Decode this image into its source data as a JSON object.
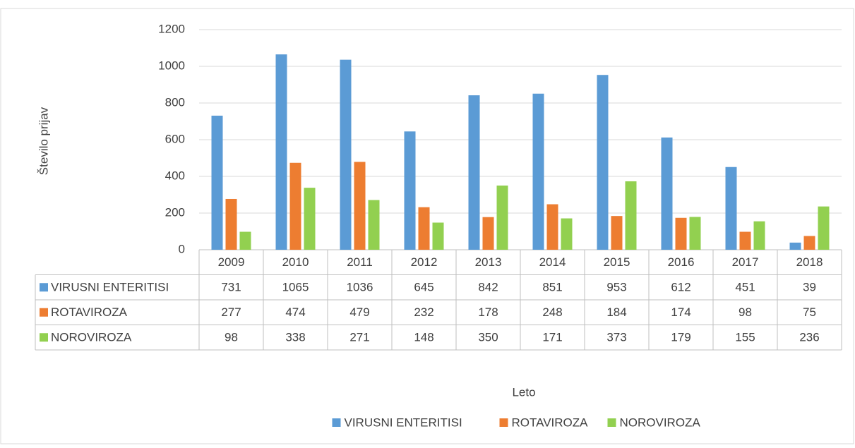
{
  "chart_data": {
    "type": "bar",
    "xlabel": "Leto",
    "ylabel": "Število prijav",
    "categories": [
      "2009",
      "2010",
      "2011",
      "2012",
      "2013",
      "2014",
      "2015",
      "2016",
      "2017",
      "2018"
    ],
    "series": [
      {
        "name": "VIRUSNI ENTERITISI",
        "color": "#5b9bd5",
        "values": [
          731,
          1065,
          1036,
          645,
          842,
          851,
          953,
          612,
          451,
          39
        ]
      },
      {
        "name": "ROTAVIROZA",
        "color": "#ed7d31",
        "values": [
          277,
          474,
          479,
          232,
          178,
          248,
          184,
          174,
          98,
          75
        ]
      },
      {
        "name": "NOROVIROZA",
        "color": "#92d050",
        "values": [
          98,
          338,
          271,
          148,
          350,
          171,
          373,
          179,
          155,
          236
        ]
      }
    ],
    "ylim": [
      0,
      1200
    ],
    "yticks": [
      0,
      200,
      400,
      600,
      800,
      1000,
      1200
    ],
    "grid": true,
    "legend": "bottom",
    "data_table": true
  }
}
